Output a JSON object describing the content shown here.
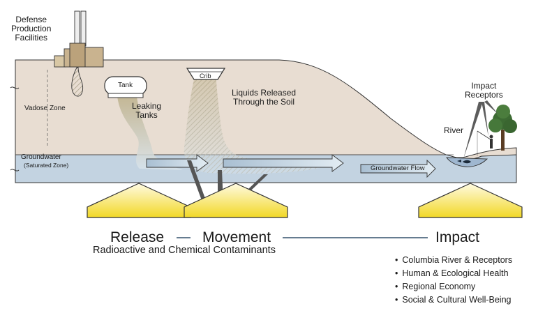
{
  "labels": {
    "facilities": [
      "Defense",
      "Production",
      "Facilities"
    ],
    "vadose_zone": "Vadose Zone",
    "groundwater": "Groundwater",
    "saturated_zone": "(Saturated Zone)",
    "tank": "Tank",
    "crib": "Crib",
    "leaking_tanks": [
      "Leaking",
      "Tanks"
    ],
    "liquids_released": [
      "Liquids Released",
      "Through the Soil"
    ],
    "impact_receptors": [
      "Impact",
      "Receptors"
    ],
    "river": "River",
    "groundwater_flow": "Groundwater Flow"
  },
  "stages": {
    "release": "Release",
    "movement": "Movement",
    "impact": "Impact",
    "subtitle": "Radioactive and Chemical Contaminants"
  },
  "impacts": [
    "Columbia River & Receptors",
    "Human & Ecological Health",
    "Regional Economy",
    "Social & Cultural Well-Being"
  ],
  "colors": {
    "soil": "#e7dcd1",
    "groundwater": "#c2d2e0",
    "outline": "#333333",
    "building": "#c9b38f",
    "plume": "#b7ad8c",
    "arrow_fill_top": "#fffbe0",
    "arrow_fill_bottom": "#f3d928",
    "connector": "#34506b",
    "tree": "#3d6b33"
  }
}
